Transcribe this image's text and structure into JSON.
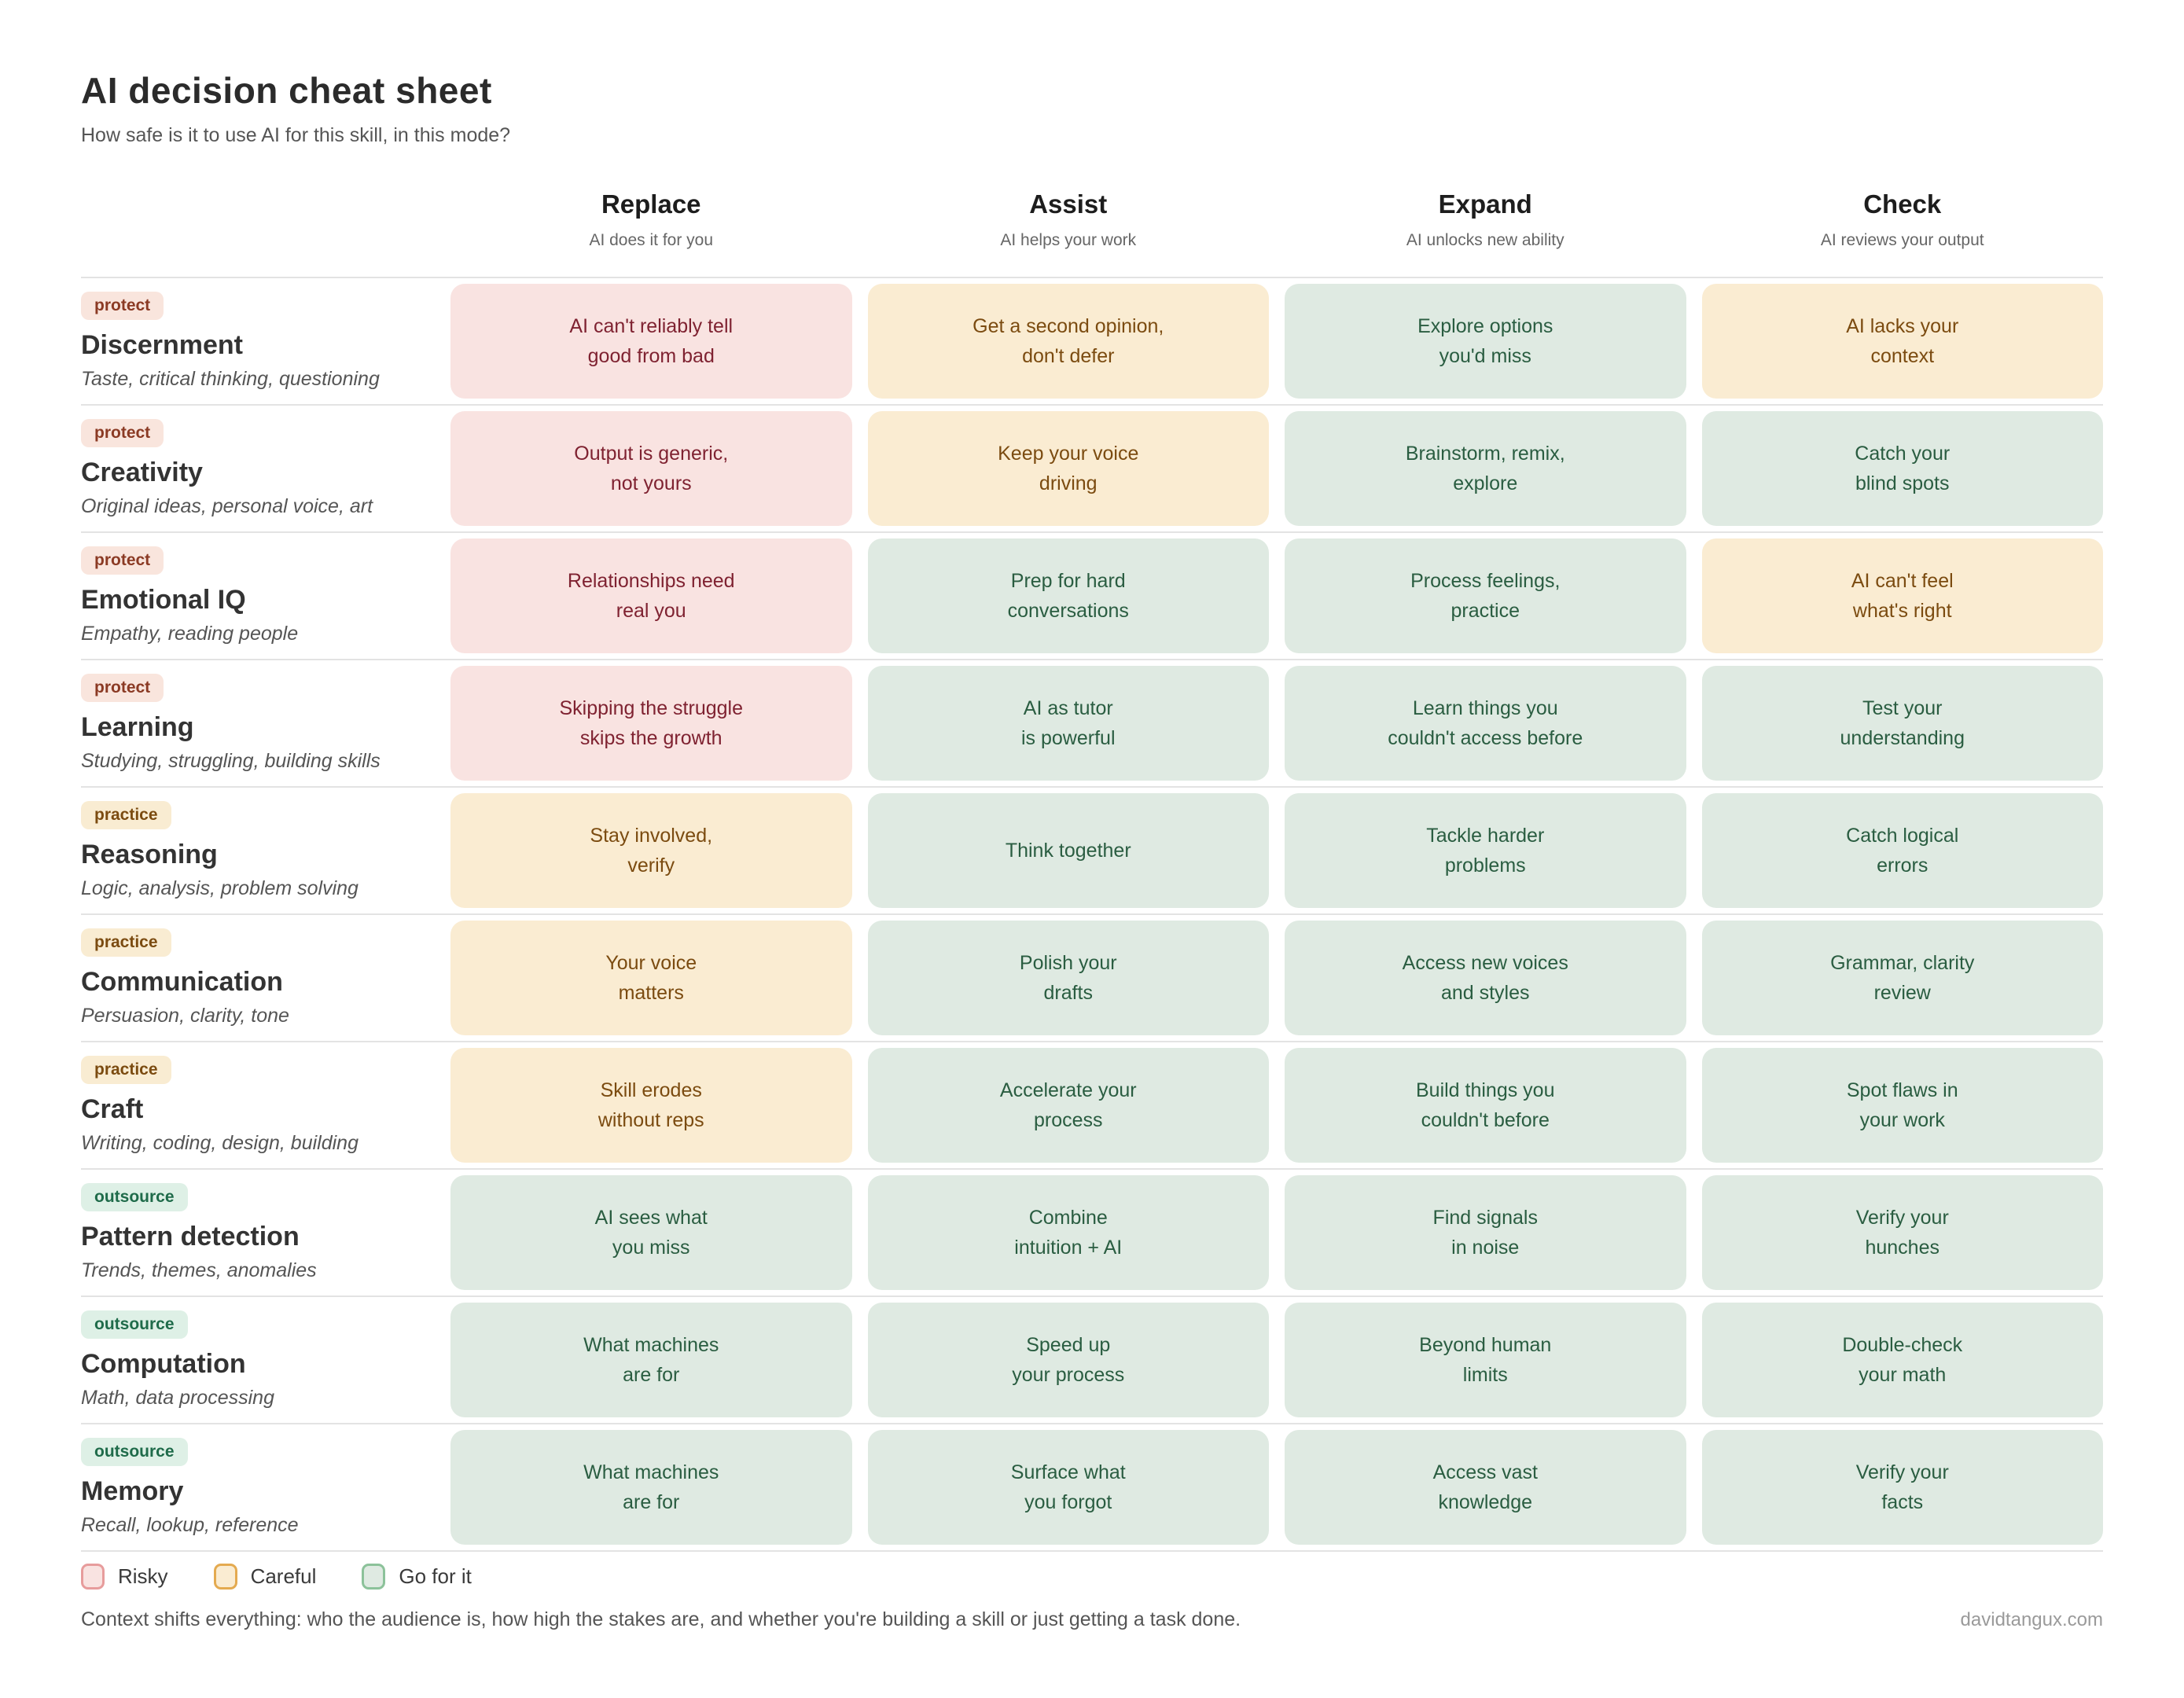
{
  "title": "AI decision cheat sheet",
  "subtitle": "How safe is it to use AI for this skill, in this mode?",
  "chart_data": {
    "type": "table",
    "legend_position": "bottom",
    "columns": [
      {
        "label": "Replace",
        "sub": "AI does it for you"
      },
      {
        "label": "Assist",
        "sub": "AI helps your work"
      },
      {
        "label": "Expand",
        "sub": "AI unlocks new ability"
      },
      {
        "label": "Check",
        "sub": "AI reviews your output"
      }
    ],
    "rows": [
      {
        "badge": "protect",
        "skill": "Discernment",
        "desc": "Taste, critical thinking, questioning",
        "cells": [
          {
            "text": "AI can't reliably tell\ngood from bad",
            "tone": "risky"
          },
          {
            "text": "Get a second opinion,\ndon't defer",
            "tone": "careful"
          },
          {
            "text": "Explore options\nyou'd miss",
            "tone": "go"
          },
          {
            "text": "AI lacks your\ncontext",
            "tone": "careful"
          }
        ]
      },
      {
        "badge": "protect",
        "skill": "Creativity",
        "desc": "Original ideas, personal voice, art",
        "cells": [
          {
            "text": "Output is generic,\nnot yours",
            "tone": "risky"
          },
          {
            "text": "Keep your voice\ndriving",
            "tone": "careful"
          },
          {
            "text": "Brainstorm, remix,\nexplore",
            "tone": "go"
          },
          {
            "text": "Catch your\nblind spots",
            "tone": "go"
          }
        ]
      },
      {
        "badge": "protect",
        "skill": "Emotional IQ",
        "desc": "Empathy, reading people",
        "cells": [
          {
            "text": "Relationships need\nreal you",
            "tone": "risky"
          },
          {
            "text": "Prep for hard\nconversations",
            "tone": "go"
          },
          {
            "text": "Process feelings,\npractice",
            "tone": "go"
          },
          {
            "text": "AI can't feel\nwhat's right",
            "tone": "careful"
          }
        ]
      },
      {
        "badge": "protect",
        "skill": "Learning",
        "desc": "Studying, struggling, building skills",
        "cells": [
          {
            "text": "Skipping the struggle\nskips the growth",
            "tone": "risky"
          },
          {
            "text": "AI as tutor\nis powerful",
            "tone": "go"
          },
          {
            "text": "Learn things you\ncouldn't access before",
            "tone": "go"
          },
          {
            "text": "Test your\nunderstanding",
            "tone": "go"
          }
        ]
      },
      {
        "badge": "practice",
        "skill": "Reasoning",
        "desc": "Logic, analysis, problem solving",
        "cells": [
          {
            "text": "Stay involved,\nverify",
            "tone": "careful"
          },
          {
            "text": "Think together",
            "tone": "go"
          },
          {
            "text": "Tackle harder\nproblems",
            "tone": "go"
          },
          {
            "text": "Catch logical\nerrors",
            "tone": "go"
          }
        ]
      },
      {
        "badge": "practice",
        "skill": "Communication",
        "desc": "Persuasion, clarity, tone",
        "cells": [
          {
            "text": "Your voice\nmatters",
            "tone": "careful"
          },
          {
            "text": "Polish your\ndrafts",
            "tone": "go"
          },
          {
            "text": "Access new voices\nand styles",
            "tone": "go"
          },
          {
            "text": "Grammar, clarity\nreview",
            "tone": "go"
          }
        ]
      },
      {
        "badge": "practice",
        "skill": "Craft",
        "desc": "Writing, coding, design, building",
        "cells": [
          {
            "text": "Skill erodes\nwithout reps",
            "tone": "careful"
          },
          {
            "text": "Accelerate your\nprocess",
            "tone": "go"
          },
          {
            "text": "Build things you\ncouldn't before",
            "tone": "go"
          },
          {
            "text": "Spot flaws in\nyour work",
            "tone": "go"
          }
        ]
      },
      {
        "badge": "outsource",
        "skill": "Pattern detection",
        "desc": "Trends, themes, anomalies",
        "cells": [
          {
            "text": "AI sees what\nyou miss",
            "tone": "go"
          },
          {
            "text": "Combine\nintuition + AI",
            "tone": "go"
          },
          {
            "text": "Find signals\nin noise",
            "tone": "go"
          },
          {
            "text": "Verify your\nhunches",
            "tone": "go"
          }
        ]
      },
      {
        "badge": "outsource",
        "skill": "Computation",
        "desc": "Math, data processing",
        "cells": [
          {
            "text": "What machines\nare for",
            "tone": "go"
          },
          {
            "text": "Speed up\nyour process",
            "tone": "go"
          },
          {
            "text": "Beyond human\nlimits",
            "tone": "go"
          },
          {
            "text": "Double-check\nyour math",
            "tone": "go"
          }
        ]
      },
      {
        "badge": "outsource",
        "skill": "Memory",
        "desc": "Recall, lookup, reference",
        "cells": [
          {
            "text": "What machines\nare for",
            "tone": "go"
          },
          {
            "text": "Surface what\nyou forgot",
            "tone": "go"
          },
          {
            "text": "Access vast\nknowledge",
            "tone": "go"
          },
          {
            "text": "Verify your\nfacts",
            "tone": "go"
          }
        ]
      }
    ],
    "legend": [
      {
        "label": "Risky",
        "tone": "risky"
      },
      {
        "label": "Careful",
        "tone": "careful"
      },
      {
        "label": "Go for it",
        "tone": "go"
      }
    ]
  },
  "footer": {
    "note": "Context shifts everything: who the audience is, how high the stakes are, and whether you're building a skill or just getting a task done.",
    "credit": "davidtangux.com"
  },
  "colors": {
    "risky-bg": "#f9e3e1",
    "risky-text": "#7f2231",
    "risky-border": "#e79c9c",
    "careful-bg": "#faecd2",
    "careful-text": "#7b4b10",
    "careful-border": "#e4aa50",
    "go-bg": "#dfeae2",
    "go-text": "#2a5d41",
    "go-border": "#8cc29a",
    "protect-badge-bg": "#f9e5dd",
    "protect-badge-text": "#8b3a24",
    "practice-badge-bg": "#f9ecd2",
    "practice-badge-text": "#7b4b10",
    "outsource-badge-bg": "#def0e6",
    "outsource-badge-text": "#1f6b4a"
  }
}
